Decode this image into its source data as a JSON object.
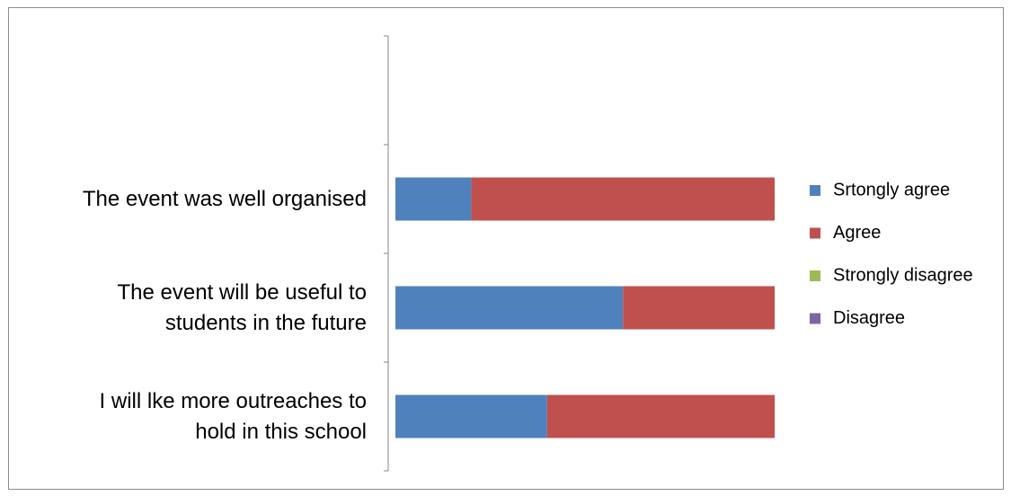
{
  "chart_data": {
    "type": "bar",
    "orientation": "horizontal",
    "stacked": "percent",
    "categories": [
      "I will lke more outreaches to\nhold in this school",
      "The event will be useful to\nstudents in the future",
      "The event was well organised",
      null
    ],
    "series": [
      {
        "name": "Srtongly agree",
        "color": "#4f81bd",
        "values": [
          40,
          60,
          20,
          null
        ]
      },
      {
        "name": "Agree",
        "color": "#c0504d",
        "values": [
          60,
          40,
          80,
          null
        ]
      },
      {
        "name": "Strongly disagree",
        "color": "#9bbb59",
        "values": [
          0,
          0,
          0,
          null
        ]
      },
      {
        "name": "Disagree",
        "color": "#8064a2",
        "values": [
          0,
          0,
          0,
          null
        ]
      }
    ],
    "legend": "right"
  }
}
